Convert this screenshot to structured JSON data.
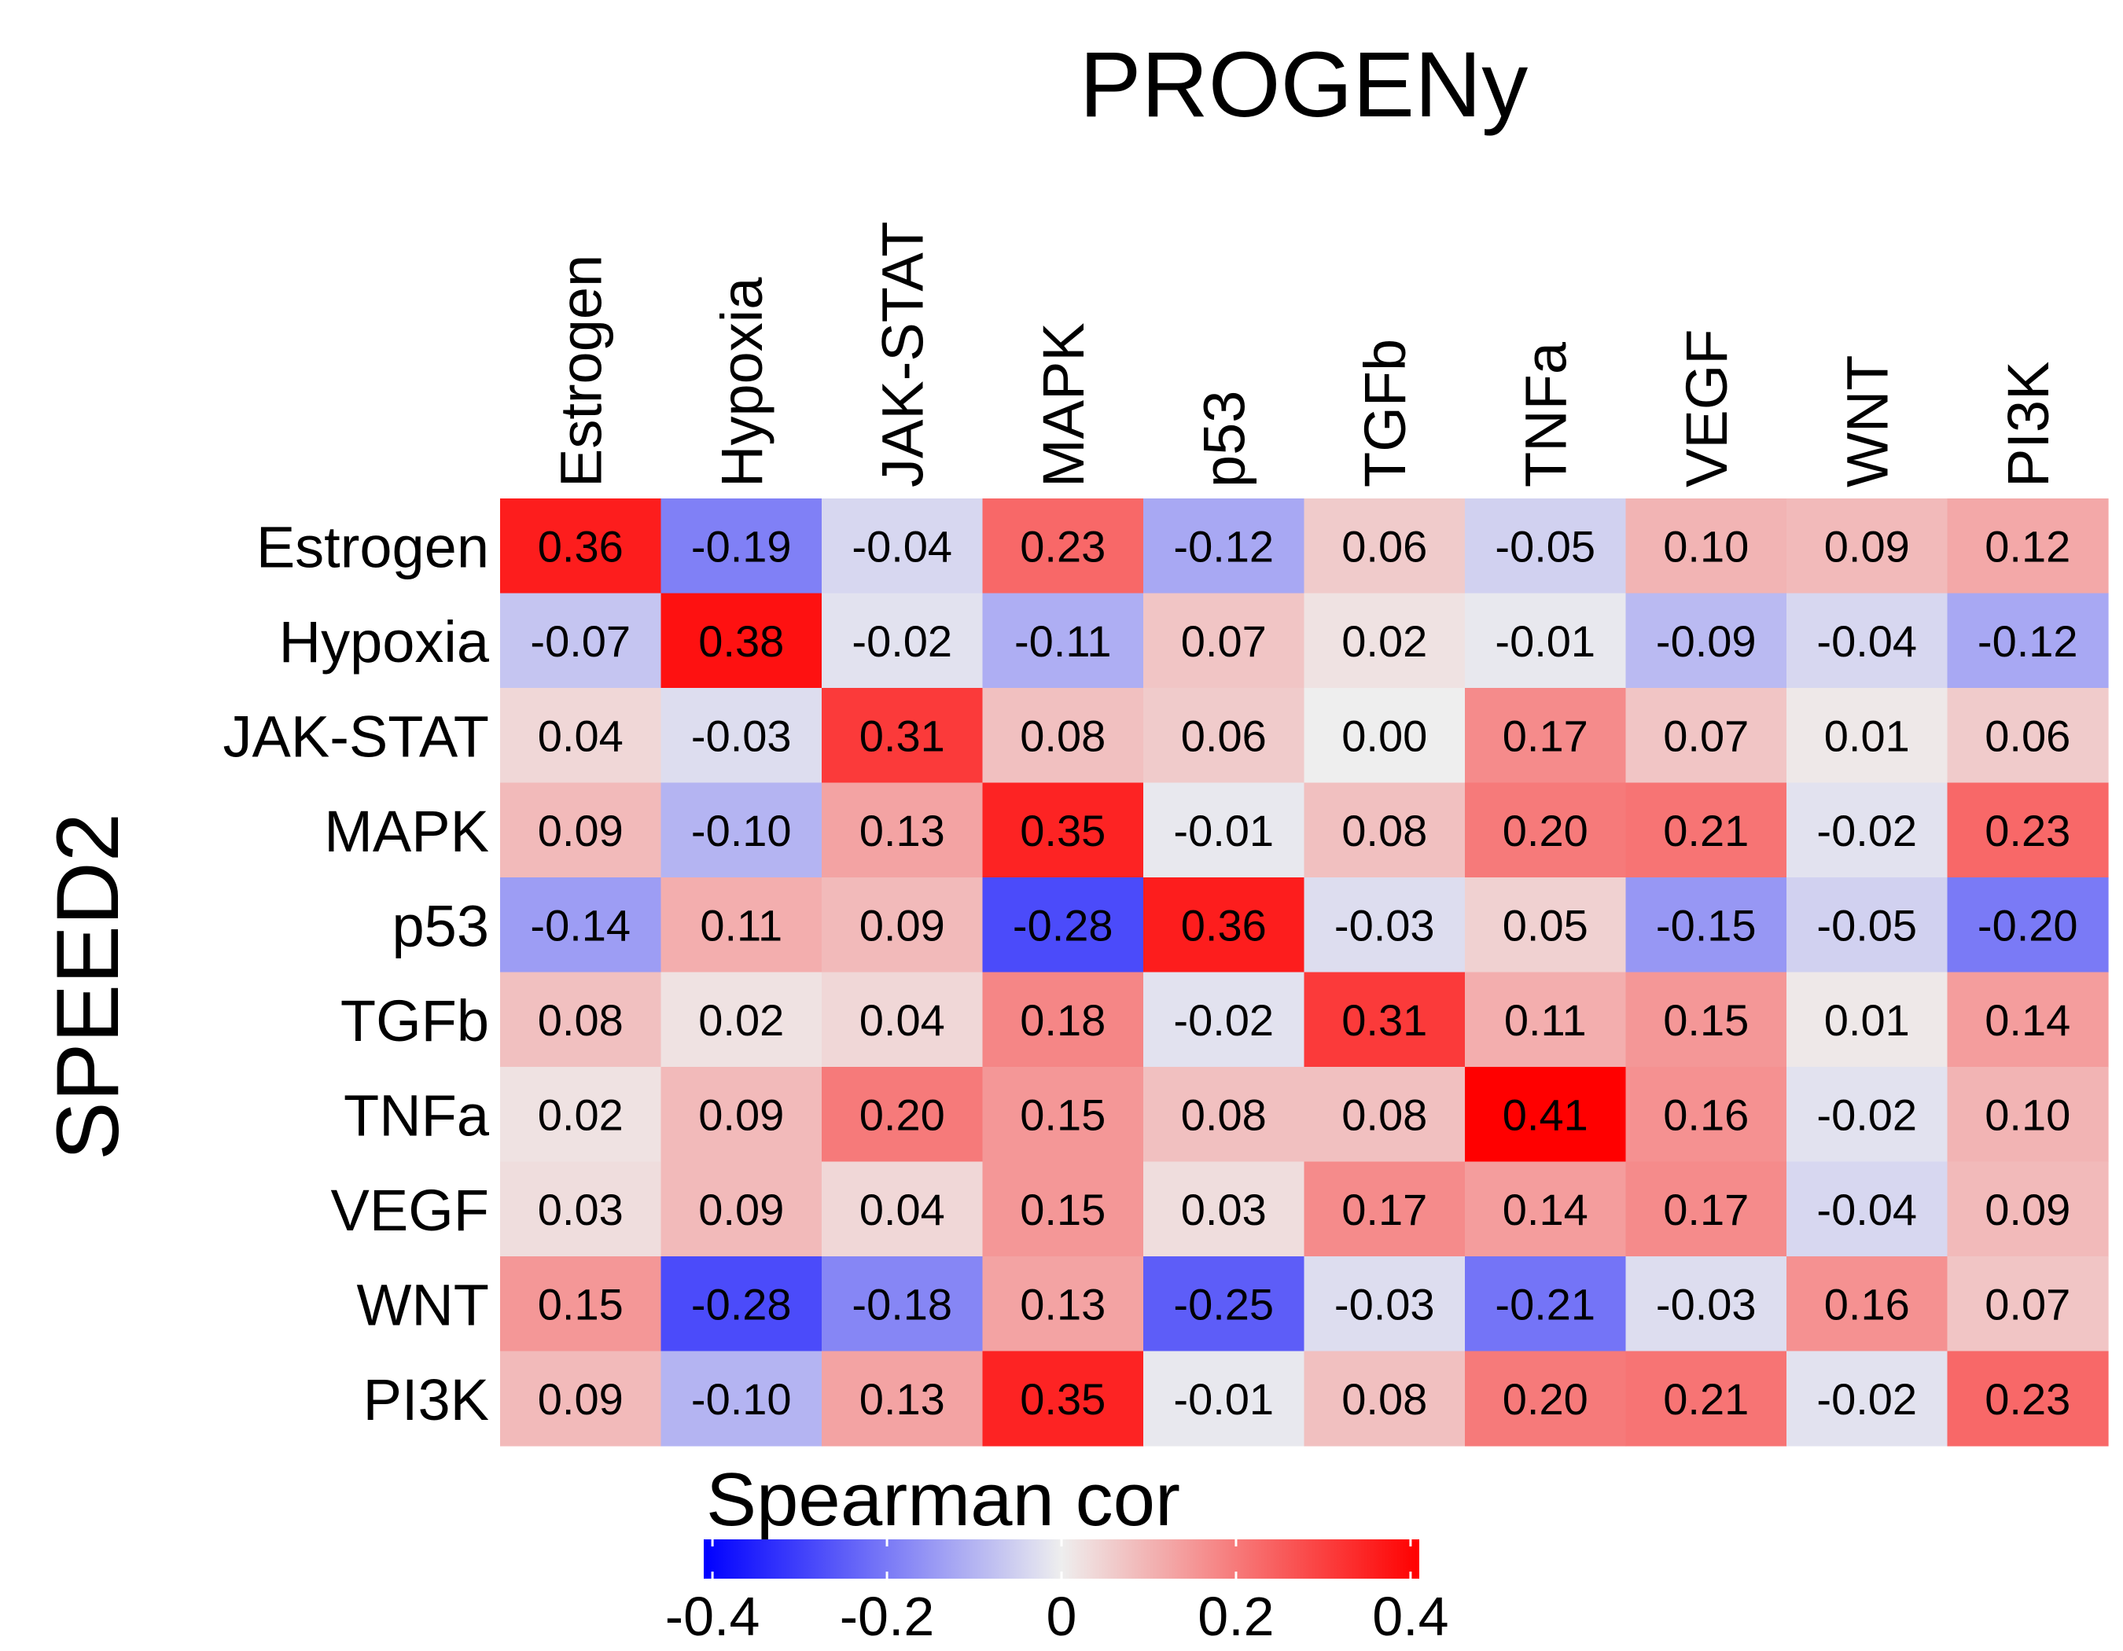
{
  "chart_data": {
    "type": "heatmap",
    "title": "PROGENy",
    "ylabel": "SPEED2",
    "columns": [
      "Estrogen",
      "Hypoxia",
      "JAK-STAT",
      "MAPK",
      "p53",
      "TGFb",
      "TNFa",
      "VEGF",
      "WNT",
      "PI3K"
    ],
    "rows": [
      "Estrogen",
      "Hypoxia",
      "JAK-STAT",
      "MAPK",
      "p53",
      "TGFb",
      "TNFa",
      "VEGF",
      "WNT",
      "PI3K"
    ],
    "values": [
      [
        0.36,
        -0.19,
        -0.04,
        0.23,
        -0.12,
        0.06,
        -0.05,
        0.1,
        0.09,
        0.12
      ],
      [
        -0.07,
        0.38,
        -0.02,
        -0.11,
        0.07,
        0.02,
        -0.01,
        -0.09,
        -0.04,
        -0.12
      ],
      [
        0.04,
        -0.03,
        0.31,
        0.08,
        0.06,
        0.0,
        0.17,
        0.07,
        0.01,
        0.06
      ],
      [
        0.09,
        -0.1,
        0.13,
        0.35,
        -0.01,
        0.08,
        0.2,
        0.21,
        -0.02,
        0.23
      ],
      [
        -0.14,
        0.11,
        0.09,
        -0.28,
        0.36,
        -0.03,
        0.05,
        -0.15,
        -0.05,
        -0.2
      ],
      [
        0.08,
        0.02,
        0.04,
        0.18,
        -0.02,
        0.31,
        0.11,
        0.15,
        0.01,
        0.14
      ],
      [
        0.02,
        0.09,
        0.2,
        0.15,
        0.08,
        0.08,
        0.41,
        0.16,
        -0.02,
        0.1
      ],
      [
        0.03,
        0.09,
        0.04,
        0.15,
        0.03,
        0.17,
        0.14,
        0.17,
        -0.04,
        0.09
      ],
      [
        0.15,
        -0.28,
        -0.18,
        0.13,
        -0.25,
        -0.03,
        -0.21,
        -0.03,
        0.16,
        0.07
      ],
      [
        0.09,
        -0.1,
        0.13,
        0.35,
        -0.01,
        0.08,
        0.2,
        0.21,
        -0.02,
        0.23
      ]
    ],
    "labels": [
      [
        "0.36",
        "-0.19",
        "-0.04",
        "0.23",
        "-0.12",
        "0.06",
        "-0.05",
        "0.10",
        "0.09",
        "0.12"
      ],
      [
        "-0.07",
        "0.38",
        "-0.02",
        "-0.11",
        "0.07",
        "0.02",
        "-0.01",
        "-0.09",
        "-0.04",
        "-0.12"
      ],
      [
        "0.04",
        "-0.03",
        "0.31",
        "0.08",
        "0.06",
        "0.00",
        "0.17",
        "0.07",
        "0.01",
        "0.06"
      ],
      [
        "0.09",
        "-0.10",
        "0.13",
        "0.35",
        "-0.01",
        "0.08",
        "0.20",
        "0.21",
        "-0.02",
        "0.23"
      ],
      [
        "-0.14",
        "0.11",
        "0.09",
        "-0.28",
        "0.36",
        "-0.03",
        "0.05",
        "-0.15",
        "-0.05",
        "-0.20"
      ],
      [
        "0.08",
        "0.02",
        "0.04",
        "0.18",
        "-0.02",
        "0.31",
        "0.11",
        "0.15",
        "0.01",
        "0.14"
      ],
      [
        "0.02",
        "0.09",
        "0.20",
        "0.15",
        "0.08",
        "0.08",
        "0.41",
        "0.16",
        "-0.02",
        "0.10"
      ],
      [
        "0.03",
        "0.09",
        "0.04",
        "0.15",
        "0.03",
        "0.17",
        "0.14",
        "0.17",
        "-0.04",
        "0.09"
      ],
      [
        "0.15",
        "-0.28",
        "-0.18",
        "0.13",
        "-0.25",
        "-0.03",
        "-0.21",
        "-0.03",
        "0.16",
        "0.07"
      ],
      [
        "0.09",
        "-0.10",
        "0.13",
        "0.35",
        "-0.01",
        "0.08",
        "0.20",
        "0.21",
        "-0.02",
        "0.23"
      ]
    ],
    "color_scale": {
      "min": -0.41,
      "max": 0.41,
      "low_color": "#0000ff",
      "mid_color": "#eeeeee",
      "high_color": "#ff0000"
    },
    "legend": {
      "title": "Spearman cor",
      "ticks": [
        -0.4,
        -0.2,
        0,
        0.2,
        0.4
      ],
      "tick_labels": [
        "-0.4",
        "-0.2",
        "0",
        "0.2",
        "0.4"
      ],
      "placement": "bottom"
    }
  }
}
